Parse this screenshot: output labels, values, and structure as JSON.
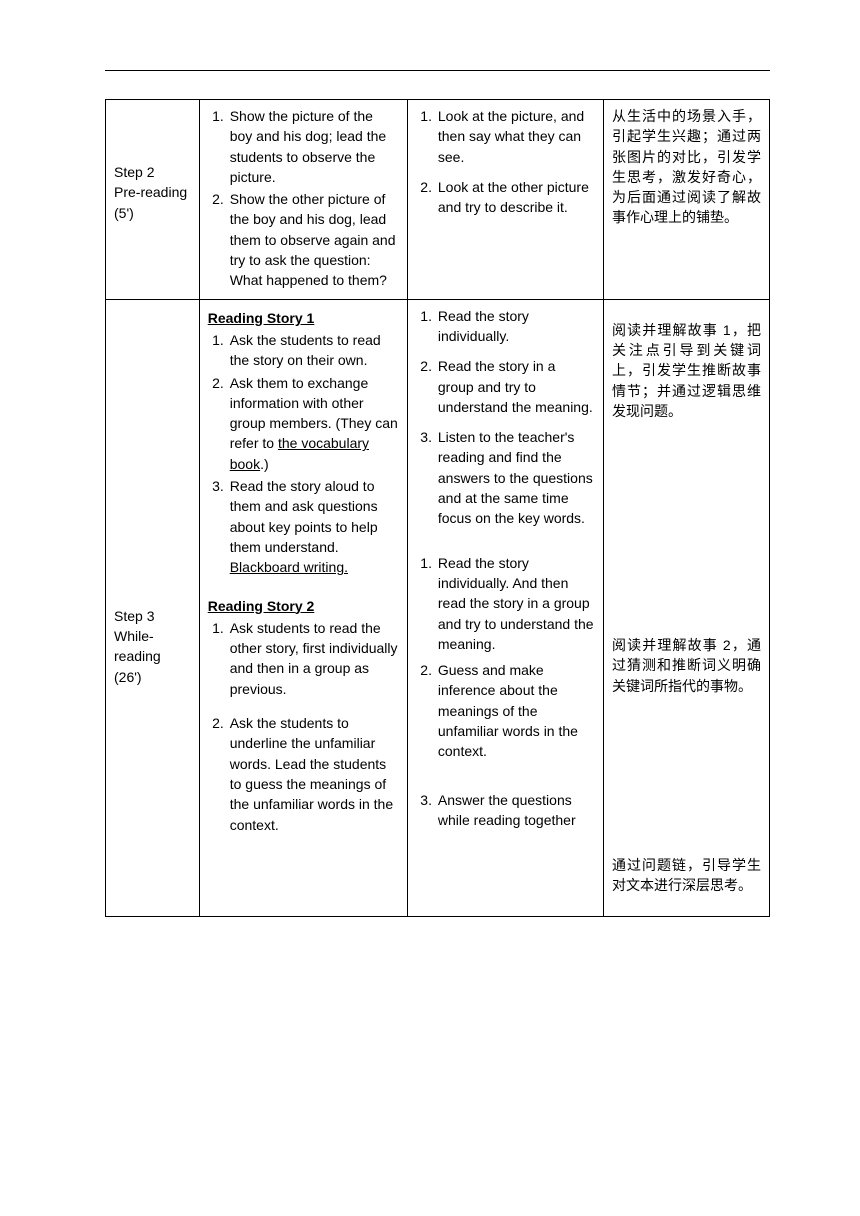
{
  "row1": {
    "step": "Step 2\nPre-reading\n(5')",
    "teacher": [
      "Show the picture of the boy and his dog; lead the students to observe the picture.",
      "Show the other picture of the boy and his dog, lead them to observe again and try to ask the question: What happened to them?"
    ],
    "student": [
      "Look at the picture, and then say what they can see.",
      "Look at the other picture and try to describe it."
    ],
    "purpose": "从生活中的场景入手，引起学生兴趣；通过两张图片的对比，引发学生思考，激发好奇心，为后面通过阅读了解故事作心理上的铺垫。"
  },
  "row2": {
    "step": "Step 3\nWhile-reading\n(26')",
    "heading1": "Reading Story 1",
    "teacher1": [
      "Ask the students to read the story on their own.",
      "Ask them to exchange information with other group members. (They can refer to ",
      "Read the story aloud to them and ask questions about key points to help them understand. "
    ],
    "vocab_link": "the vocabulary book",
    "blackboard": "Blackboard writing.",
    "heading2": "Reading Story 2",
    "teacher2": [
      "Ask students to read the other story, first individually and then in a group as previous.",
      "Ask the students to underline the unfamiliar words. Lead the students to guess the meanings of the unfamiliar words in the context."
    ],
    "student1": [
      "Read the story individually.",
      "Read the story in a group and try to understand the meaning.",
      "Listen to the teacher's reading and find the answers to the questions and at the same time focus on the key words."
    ],
    "student2": [
      "Read the story individually. And then read the story in a group and try to understand the meaning.",
      "Guess and make inference about the meanings of the unfamiliar words in the context.",
      "Answer the questions while reading together"
    ],
    "purpose1": "阅读并理解故事 1，把关注点引导到关键词上，引发学生推断故事情节；并通过逻辑思维发现问题。",
    "purpose2": "阅读并理解故事 2，通过猜测和推断词义明确关键词所指代的事物。",
    "purpose3": "通过问题链，引导学生对文本进行深层思考。"
  }
}
